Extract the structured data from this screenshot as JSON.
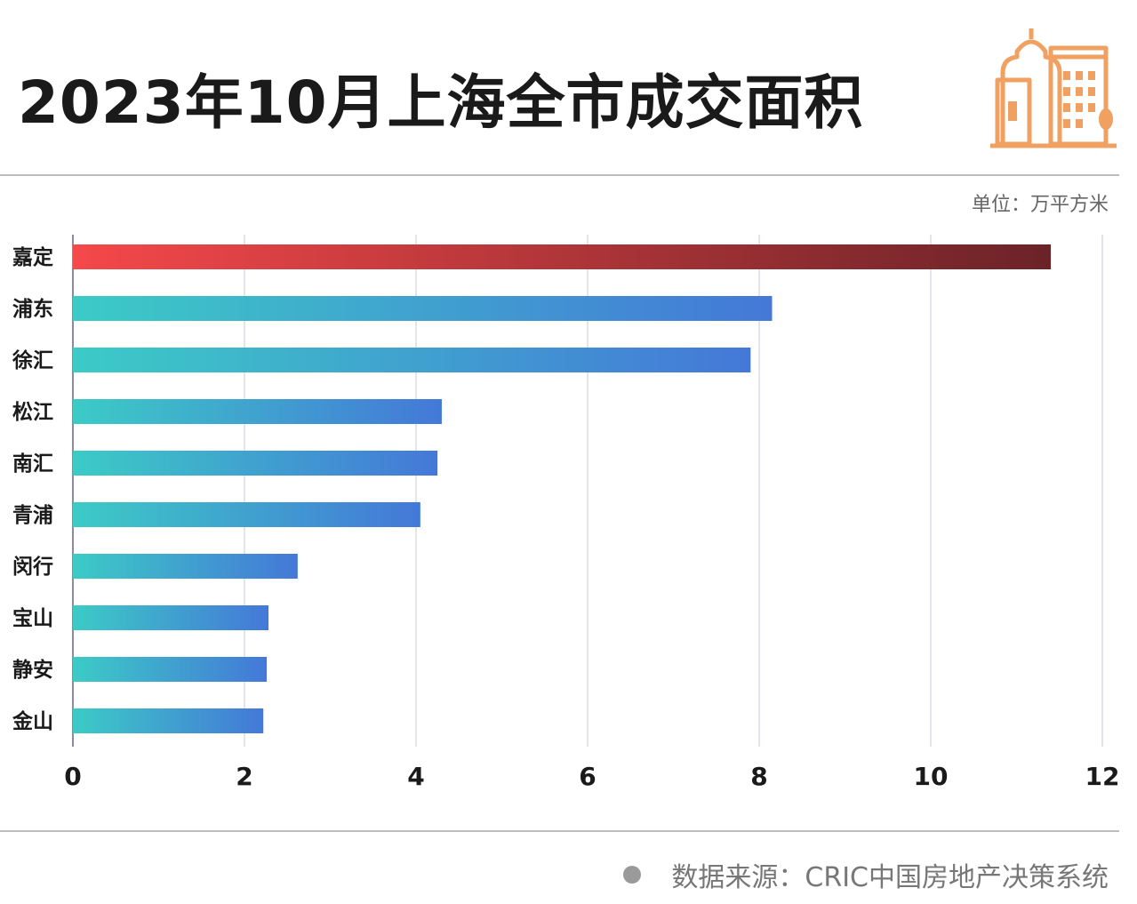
{
  "title": "2023年10月上海全市成交面积",
  "unit_label": "单位：万平方米",
  "source": "数据来源：CRIC中国房地产决策系统",
  "colors": {
    "highlight_start": "#f5484a",
    "highlight_end": "#6b2328",
    "bar_start": "#3ccbc6",
    "bar_end": "#4478d8",
    "icon": "#f0a060",
    "grid": "#dcdce6"
  },
  "icon": "building-icon",
  "chart_data": {
    "type": "bar",
    "orientation": "horizontal",
    "categories": [
      "嘉定",
      "浦东",
      "徐汇",
      "松江",
      "南汇",
      "青浦",
      "闵行",
      "宝山",
      "静安",
      "金山"
    ],
    "values": [
      11.4,
      8.15,
      7.9,
      4.3,
      4.25,
      4.05,
      2.62,
      2.28,
      2.26,
      2.22
    ],
    "highlight_index": 0,
    "xlim": [
      0,
      12
    ],
    "xticks": [
      0,
      2,
      4,
      6,
      8,
      10,
      12
    ],
    "grid": "vertical",
    "legend": "none"
  }
}
